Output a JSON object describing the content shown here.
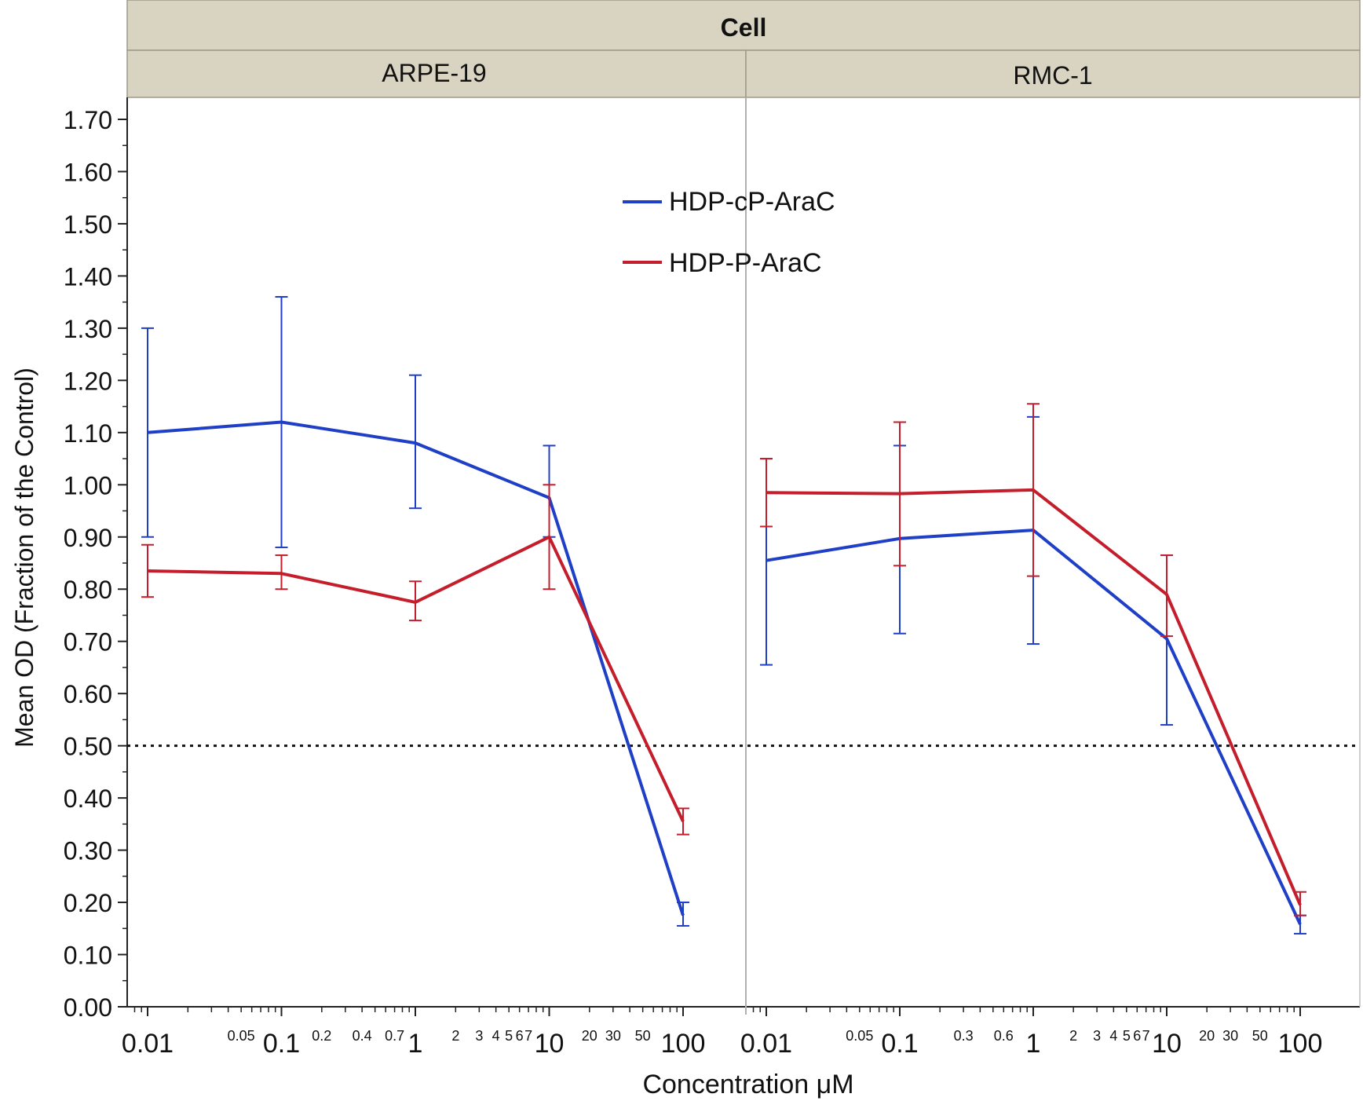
{
  "chart_data": {
    "type": "line",
    "facet_title": "Cell",
    "xlabel": "Concentration μM",
    "ylabel": "Mean OD (Fraction of the Control)",
    "x_scale": "log",
    "xlim": [
      0.008,
      160
    ],
    "ylim": [
      0,
      1.75
    ],
    "y_ticks": [
      "0.00",
      "0.10",
      "0.20",
      "0.30",
      "0.40",
      "0.50",
      "0.60",
      "0.70",
      "0.80",
      "0.90",
      "1.00",
      "1.10",
      "1.20",
      "1.30",
      "1.40",
      "1.50",
      "1.60",
      "1.70"
    ],
    "x_major_ticks": [
      {
        "label": "0.01",
        "value": 0.01
      },
      {
        "label": "0.1",
        "value": 0.1
      },
      {
        "label": "1",
        "value": 1
      },
      {
        "label": "10",
        "value": 10
      },
      {
        "label": "100",
        "value": 100
      }
    ],
    "reference_line": {
      "y": 0.5,
      "style": "dotted"
    },
    "legend": {
      "position": "top-center"
    },
    "panels": [
      {
        "name": "ARPE-19",
        "minor_tick_labels": [
          {
            "label": "0.05",
            "value": 0.05
          },
          {
            "label": "0.2",
            "value": 0.2
          },
          {
            "label": "0.4",
            "value": 0.4
          },
          {
            "label": "0.7",
            "value": 0.7
          },
          {
            "label": "2",
            "value": 2
          },
          {
            "label": "3",
            "value": 3
          },
          {
            "label": "4",
            "value": 4
          },
          {
            "label": "5",
            "value": 5
          },
          {
            "label": "6",
            "value": 6
          },
          {
            "label": "7",
            "value": 7
          },
          {
            "label": "20",
            "value": 20
          },
          {
            "label": "30",
            "value": 30
          },
          {
            "label": "50",
            "value": 50
          }
        ],
        "series": [
          {
            "name": "HDP-cP-AraC",
            "color": "#1f3fc6",
            "x": [
              0.01,
              0.1,
              1,
              10,
              100
            ],
            "y": [
              1.1,
              1.12,
              1.08,
              0.975,
              0.175
            ],
            "err_low": [
              0.9,
              0.88,
              0.955,
              0.9,
              0.155
            ],
            "err_high": [
              1.3,
              1.36,
              1.21,
              1.075,
              0.2
            ]
          },
          {
            "name": "HDP-P-AraC",
            "color": "#c41e2c",
            "x": [
              0.01,
              0.1,
              1,
              10,
              100
            ],
            "y": [
              0.835,
              0.83,
              0.775,
              0.9,
              0.355
            ],
            "err_low": [
              0.785,
              0.8,
              0.74,
              0.8,
              0.33
            ],
            "err_high": [
              0.885,
              0.865,
              0.815,
              1.0,
              0.38
            ]
          }
        ]
      },
      {
        "name": "RMC-1",
        "minor_tick_labels": [
          {
            "label": "0.05",
            "value": 0.05
          },
          {
            "label": "0.3",
            "value": 0.3
          },
          {
            "label": "0.6",
            "value": 0.6
          },
          {
            "label": "2",
            "value": 2
          },
          {
            "label": "3",
            "value": 3
          },
          {
            "label": "4",
            "value": 4
          },
          {
            "label": "5",
            "value": 5
          },
          {
            "label": "6",
            "value": 6
          },
          {
            "label": "7",
            "value": 7
          },
          {
            "label": "20",
            "value": 20
          },
          {
            "label": "30",
            "value": 30
          },
          {
            "label": "50",
            "value": 50
          }
        ],
        "series": [
          {
            "name": "HDP-cP-AraC",
            "color": "#1f3fc6",
            "x": [
              0.01,
              0.1,
              1,
              10,
              100
            ],
            "y": [
              0.855,
              0.897,
              0.913,
              0.705,
              0.158
            ],
            "err_low": [
              0.655,
              0.715,
              0.695,
              0.54,
              0.14
            ],
            "err_high": [
              1.05,
              1.075,
              1.13,
              0.865,
              0.175
            ]
          },
          {
            "name": "HDP-P-AraC",
            "color": "#c41e2c",
            "x": [
              0.01,
              0.1,
              1,
              10,
              100
            ],
            "y": [
              0.985,
              0.983,
              0.99,
              0.79,
              0.195
            ],
            "err_low": [
              0.92,
              0.845,
              0.825,
              0.71,
              0.175
            ],
            "err_high": [
              1.05,
              1.12,
              1.155,
              0.865,
              0.22
            ]
          }
        ]
      }
    ]
  }
}
